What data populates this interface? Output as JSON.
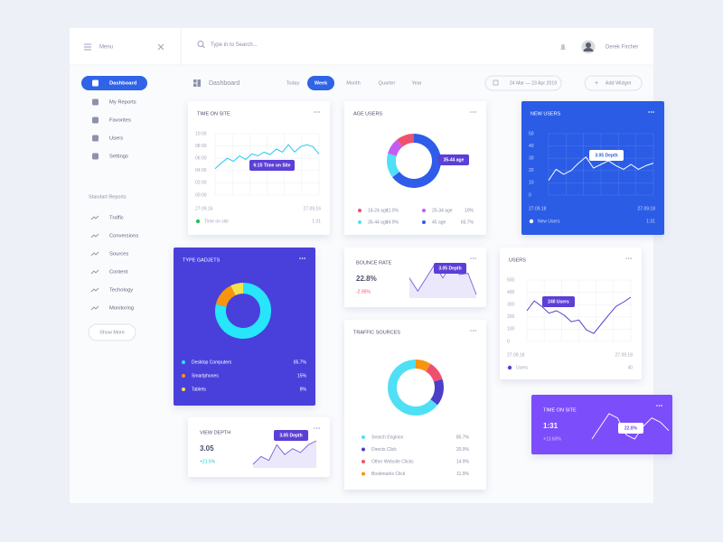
{
  "topbar": {
    "menu": "Menu",
    "search_placeholder": "Type in to Search...",
    "user": "Derek Fircher"
  },
  "sidebar": {
    "items": [
      "Dashboard",
      "My Reports",
      "Favorites",
      "Users",
      "Settings"
    ],
    "active": 0,
    "section": "Standart Reports",
    "reports": [
      "Traffic",
      "Conversions",
      "Sources",
      "Content",
      "Techology",
      "Monitoring"
    ],
    "more": "Show More"
  },
  "toolbar": {
    "title": "Dashboard",
    "periods": [
      "Today",
      "Week",
      "Month",
      "Quarter",
      "Year"
    ],
    "active_period": 1,
    "date_range": "24 Mar — 23 Apr 2019",
    "add": "Add Widget"
  },
  "widgets": [
    {
      "type": "line",
      "title": "TIME ON SITE",
      "ylim": [
        0,
        10
      ],
      "yticks": [
        {
          "value": 10,
          "label": "10:00"
        },
        {
          "value": 8,
          "label": "08:00"
        },
        {
          "value": 6,
          "label": "06:00"
        },
        {
          "value": 4,
          "label": "04:00"
        },
        {
          "value": 2,
          "label": "02:00"
        },
        {
          "value": 0,
          "label": "00:00"
        }
      ],
      "grid": true,
      "x_labels": [
        "27.09.16",
        "27.09.16"
      ],
      "series": [
        {
          "name": "Time on site",
          "color": "#27c6f2",
          "values": [
            4.3,
            5.2,
            6.0,
            5.5,
            6.4,
            5.8,
            6.7,
            6.4,
            7.0,
            6.6,
            7.5,
            7.0,
            8.2,
            7.0,
            7.9,
            8.2,
            7.9,
            6.7
          ]
        }
      ],
      "legend_color": "#22c55e",
      "summary": "1:31",
      "annotation": "6:15 Time on Site"
    },
    {
      "type": "donut",
      "title": "AGE USERS",
      "categories": [
        "18-24 age",
        "25-34 age",
        "35-44 age",
        "45 age"
      ],
      "values": [
        11.0,
        10,
        14.9,
        65.7
      ],
      "value_labels": [
        "11.0%",
        "10%",
        "14.9%",
        "65.7%"
      ],
      "colors": [
        "#f0506e",
        "#c35df2",
        "#4fe0f5",
        "#2f5ce8"
      ],
      "annotation": "35-44 age"
    },
    {
      "type": "line",
      "title": "NEW USERS",
      "card_color": "#2b5ce6",
      "ylim": [
        0,
        50
      ],
      "yticks": [
        0,
        10,
        20,
        30,
        40,
        50
      ],
      "grid": true,
      "x_labels": [
        "27.09.18",
        "27.09.18"
      ],
      "series": [
        {
          "name": "New Users",
          "color": "#ffffff",
          "values": [
            12,
            21,
            17,
            20,
            26,
            31,
            22,
            25,
            28,
            24,
            21,
            25,
            21,
            24,
            26
          ]
        }
      ],
      "legend_color": "#ffffff",
      "summary": "1:31",
      "annotation": "3.05 Depth"
    },
    {
      "type": "donut",
      "title": "TYPE GADJETS",
      "card_color": "#4a3fdc",
      "categories": [
        "Desktop Computers",
        "Smartphones",
        "Tablets"
      ],
      "values": [
        85.7,
        15,
        8
      ],
      "value_labels": [
        "85.7%",
        "15%",
        "8%"
      ],
      "colors": [
        "#27e6fb",
        "#f8950e",
        "#f5e24a"
      ]
    },
    {
      "type": "stat",
      "title": "BOUNCE RATE",
      "value": "22.8%",
      "change": "-2.95%",
      "change_color": "#f0506e",
      "values": [
        4,
        2,
        4,
        6,
        4,
        6,
        4.5,
        4.7,
        1.5
      ],
      "line_color": "#7b5ce0",
      "area_color": "#ece8fb",
      "annotation": "3.05 Depth"
    },
    {
      "type": "line",
      "title": "USERS",
      "ylim": [
        0,
        500
      ],
      "yticks": [
        0,
        100,
        200,
        300,
        400,
        500
      ],
      "grid": true,
      "x_labels": [
        "27.09.18",
        "27.09.18"
      ],
      "series": [
        {
          "name": "Users",
          "color": "#5b3fc7",
          "values": [
            250,
            330,
            285,
            230,
            250,
            215,
            160,
            175,
            95,
            65,
            140,
            215,
            285,
            320,
            360
          ]
        }
      ],
      "legend_color": "#5b3fc7",
      "summary": "40",
      "annotation": "240 Users"
    },
    {
      "type": "donut",
      "title": "TRAFFIC SOURCES",
      "categories": [
        "Search Engines",
        "Directs Click",
        "Other Website Clicks",
        "Bookmarks Click"
      ],
      "values": [
        85.7,
        20.9,
        14.9,
        11.9
      ],
      "value_labels": [
        "85.7%",
        "20.9%",
        "14.9%",
        "11.9%"
      ],
      "colors": [
        "#4fe0f5",
        "#4a3fc8",
        "#f0506e",
        "#f8950e"
      ]
    },
    {
      "type": "stat",
      "title": "VIEW DEPTH",
      "value": "3.05",
      "change": "+21.5%",
      "change_color": "#22c7d6",
      "values": [
        2,
        4,
        3,
        7,
        4.5,
        6,
        5,
        7,
        8
      ],
      "line_color": "#7b5ce0",
      "area_color": "#ece8fb",
      "annotation": "3.05 Depth"
    },
    {
      "type": "stat",
      "title": "TIME ON SITE",
      "card_color": "#7b4dfa",
      "value": "1:31",
      "change": "+13.60%",
      "change_color": "#d9ccff",
      "values": [
        3,
        6,
        9,
        8,
        4,
        3,
        6,
        8,
        7,
        5
      ],
      "line_color": "#ffffff",
      "annotation": "22.8%"
    }
  ]
}
